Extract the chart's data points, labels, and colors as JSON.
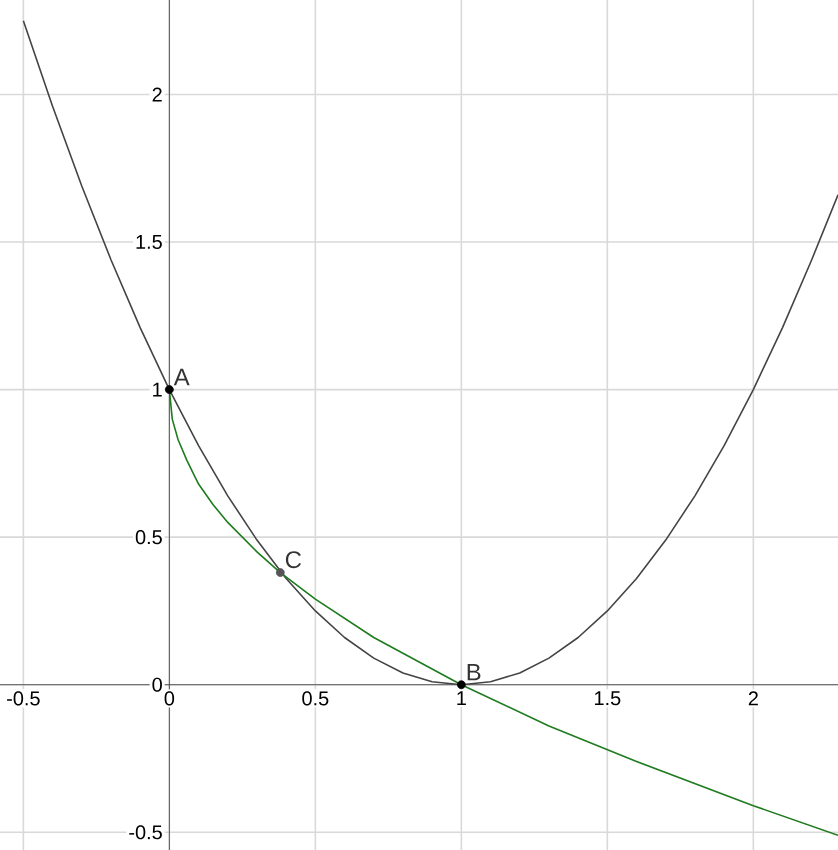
{
  "chart_data": {
    "type": "line",
    "xlim": [
      -0.58,
      2.29
    ],
    "ylim": [
      -0.56,
      2.32
    ],
    "xticks": [
      -0.5,
      0,
      0.5,
      1,
      1.5,
      2
    ],
    "yticks": [
      -0.5,
      0,
      0.5,
      1,
      1.5,
      2
    ],
    "grid": true,
    "marker": "none",
    "series": [
      {
        "color": "#444444",
        "x": [
          -0.5,
          -0.4,
          -0.3,
          -0.2,
          -0.1,
          0,
          0.1,
          0.2,
          0.3,
          0.4,
          0.5,
          0.6,
          0.7,
          0.8,
          0.9,
          1,
          1.1,
          1.2,
          1.3,
          1.4,
          1.5,
          1.6,
          1.7,
          1.8,
          1.9,
          2,
          2.1,
          2.2,
          2.29
        ],
        "values": [
          2.25,
          1.96,
          1.69,
          1.44,
          1.21,
          1,
          0.81,
          0.64,
          0.49,
          0.36,
          0.25,
          0.16,
          0.09,
          0.04,
          0.01,
          0,
          0.01,
          0.04,
          0.09,
          0.16,
          0.25,
          0.36,
          0.49,
          0.64,
          0.81,
          1,
          1.21,
          1.44,
          1.66
        ]
      },
      {
        "color": "#1e7b1e",
        "x": [
          0,
          0.01,
          0.03,
          0.06,
          0.1,
          0.15,
          0.2,
          0.3,
          0.38,
          0.5,
          0.7,
          1,
          1.3,
          1.6,
          2,
          2.29
        ],
        "values": [
          1,
          0.9,
          0.83,
          0.76,
          0.68,
          0.61,
          0.55,
          0.45,
          0.38,
          0.29,
          0.16,
          0,
          -0.14,
          -0.26,
          -0.41,
          -0.51
        ]
      },
      {
        "type": "scatter",
        "color": "#000000",
        "marker": "circle",
        "x": [
          0,
          1
        ],
        "values": [
          1,
          0
        ]
      },
      {
        "type": "scatter",
        "color": "#555555",
        "marker": "circle",
        "x": [
          0.38
        ],
        "values": [
          0.38
        ]
      }
    ],
    "annotations": [
      {
        "text": "A",
        "x": 0,
        "y": 1
      },
      {
        "text": "B",
        "x": 1,
        "y": 0
      },
      {
        "text": "C",
        "x": 0.38,
        "y": 0.38
      }
    ]
  }
}
